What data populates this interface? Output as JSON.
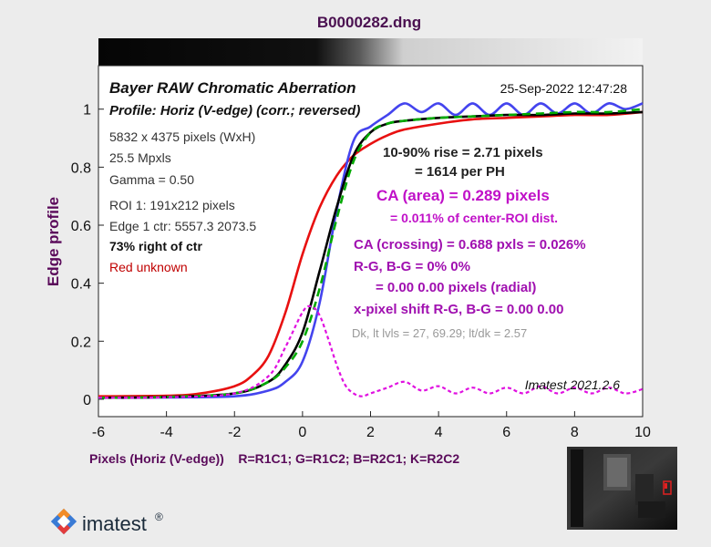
{
  "figure": {
    "title": "B0000282.dng",
    "logo_text": "imatest",
    "logo_mark": "®"
  },
  "colors": {
    "red": "#e81010",
    "green": "#00aa00",
    "blue": "#4444ee",
    "black": "#000000",
    "magenta": "#e010e0",
    "purple_text": "#9a0aa8",
    "axis_label": "#5a0a5a"
  },
  "chart_data": {
    "type": "line",
    "title": "Bayer RAW Chromatic Aberration",
    "subtitle": "Profile: Horiz (V-edge) (corr.; reversed)",
    "timestamp": "25-Sep-2022 12:47:28",
    "xlabel": "Pixels (Horiz (V-edge))    R=R1C1; G=R1C2; B=R2C1; K=R2C2",
    "ylabel": "Edge profile",
    "xlim": [
      -6,
      10
    ],
    "ylim": [
      -0.06,
      1.15
    ],
    "xticks": [
      -6,
      -4,
      -2,
      0,
      2,
      4,
      6,
      8,
      10
    ],
    "yticks": [
      0,
      0.2,
      0.4,
      0.6,
      0.8,
      1
    ],
    "ytick_labels": [
      "0",
      "0.2",
      "0.4",
      "0.6",
      "0.8",
      "1"
    ],
    "grid": false,
    "series": [
      {
        "name": "R",
        "color": "red",
        "style": "solid",
        "x": [
          -6,
          -4,
          -3,
          -2,
          -1.5,
          -1,
          -0.5,
          0,
          0.5,
          1,
          1.5,
          2,
          2.5,
          3,
          4,
          5,
          6,
          7,
          8,
          9,
          10
        ],
        "y": [
          0.01,
          0.012,
          0.02,
          0.045,
          0.08,
          0.15,
          0.3,
          0.5,
          0.66,
          0.77,
          0.84,
          0.88,
          0.91,
          0.93,
          0.95,
          0.965,
          0.97,
          0.975,
          0.98,
          0.98,
          0.99
        ]
      },
      {
        "name": "G",
        "color": "green",
        "style": "dashed",
        "x": [
          -6,
          -4,
          -2,
          -1,
          -0.5,
          0,
          0.5,
          1,
          1.5,
          2,
          2.5,
          3,
          4,
          5,
          6,
          7,
          8,
          9,
          10
        ],
        "y": [
          0.005,
          0.008,
          0.02,
          0.06,
          0.11,
          0.2,
          0.38,
          0.62,
          0.82,
          0.92,
          0.95,
          0.96,
          0.97,
          0.975,
          0.98,
          0.985,
          0.99,
          0.99,
          1.0
        ]
      },
      {
        "name": "B",
        "color": "blue",
        "style": "solid",
        "x": [
          -6,
          -4,
          -2,
          -1,
          -0.5,
          0,
          0.5,
          1,
          1.5,
          2,
          2.5,
          3,
          3.5,
          4,
          4.5,
          5,
          5.5,
          6,
          6.5,
          7,
          7.5,
          8,
          8.5,
          9,
          9.5,
          10
        ],
        "y": [
          0.005,
          0.006,
          0.01,
          0.03,
          0.06,
          0.13,
          0.33,
          0.65,
          0.89,
          0.94,
          0.98,
          1.02,
          0.99,
          1.02,
          0.98,
          1.02,
          0.98,
          1.02,
          0.98,
          1.02,
          0.985,
          1.02,
          0.985,
          1.02,
          1.0,
          1.02
        ]
      },
      {
        "name": "K",
        "color": "black",
        "style": "solid",
        "x": [
          -6,
          -4,
          -2,
          -1,
          -0.5,
          0,
          0.5,
          1,
          1.5,
          2,
          2.5,
          3,
          4,
          5,
          6,
          7,
          8,
          9,
          10
        ],
        "y": [
          0.005,
          0.008,
          0.02,
          0.06,
          0.12,
          0.23,
          0.44,
          0.66,
          0.84,
          0.92,
          0.95,
          0.96,
          0.97,
          0.975,
          0.98,
          0.98,
          0.985,
          0.985,
          0.99
        ]
      },
      {
        "name": "CA",
        "color": "magenta",
        "style": "dotted",
        "x": [
          -6,
          -4,
          -2,
          -1,
          -0.5,
          0,
          0.25,
          0.5,
          0.75,
          1,
          1.25,
          1.5,
          1.75,
          2,
          2.5,
          3,
          3.5,
          4,
          4.5,
          5,
          5.5,
          6,
          6.5,
          7,
          7.5,
          8,
          8.5,
          9,
          9.5,
          10
        ],
        "y": [
          0.005,
          0.007,
          0.02,
          0.08,
          0.18,
          0.3,
          0.32,
          0.29,
          0.21,
          0.12,
          0.05,
          0.02,
          0.01,
          0.02,
          0.04,
          0.06,
          0.03,
          0.045,
          0.02,
          0.04,
          0.02,
          0.04,
          0.02,
          0.045,
          0.02,
          0.04,
          0.02,
          0.04,
          0.02,
          0.035
        ]
      }
    ]
  },
  "info": {
    "left_lines": [
      "5832 x 4375 pixels (WxH)",
      "25.5 Mpxls",
      "Gamma = 0.50",
      "ROI 1: 191x212 pixels",
      "Edge 1 ctr: 5557.3  2073.5"
    ],
    "position": "73% right of ctr",
    "red_note": "Red unknown",
    "rise_line1": "10-90% rise = 2.71 pixels",
    "rise_line2": "= 1614 per PH",
    "ca_area": "CA (area) = 0.289 pixels",
    "ca_area_pct": "= 0.011% of center-ROI dist.",
    "ca_crossing": "CA (crossing) = 0.688 pxls = 0.026%",
    "rg_bg": "R-G, B-G = 0%  0%",
    "radial": "= 0.00  0.00 pixels (radial)",
    "xshift": "x-pixel shift R-G, B-G = 0.00  0.00",
    "dk_levels": "Dk, lt lvls = 27, 69.29;  lt/dk = 2.57",
    "version": "Imatest 2021.2.6"
  }
}
